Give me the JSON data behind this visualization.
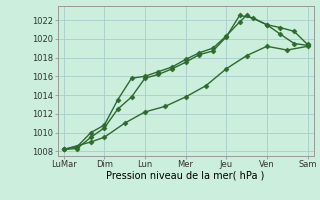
{
  "xlabel": "Pression niveau de la mer( hPa )",
  "ylim": [
    1007.5,
    1023.5
  ],
  "yticks": [
    1008,
    1010,
    1012,
    1014,
    1016,
    1018,
    1020,
    1022
  ],
  "x_labels": [
    "LuMar",
    "Dim",
    "Lun",
    "Mer",
    "Jeu",
    "Ven",
    "Sam"
  ],
  "background_color": "#cceedd",
  "grid_color": "#aacccc",
  "line_color": "#2d6a2d",
  "series": [
    {
      "x": [
        0,
        0.33,
        0.67,
        1.0,
        1.33,
        1.67,
        2.0,
        2.33,
        2.67,
        3.0,
        3.33,
        3.67,
        4.0,
        4.33,
        4.67,
        5.0,
        5.33,
        5.67,
        6.0
      ],
      "y": [
        1008.2,
        1008.3,
        1009.5,
        1010.5,
        1012.5,
        1013.8,
        1015.8,
        1016.2,
        1016.8,
        1017.5,
        1018.3,
        1018.7,
        1020.2,
        1022.5,
        1022.2,
        1021.5,
        1020.5,
        1019.5,
        1019.3
      ]
    },
    {
      "x": [
        0,
        0.33,
        0.67,
        1.0,
        1.33,
        1.67,
        2.0,
        2.33,
        2.67,
        3.0,
        3.33,
        3.67,
        4.0,
        4.33,
        4.5,
        5.0,
        5.33,
        5.67,
        6.0
      ],
      "y": [
        1008.2,
        1008.5,
        1010.0,
        1010.8,
        1013.5,
        1015.8,
        1016.0,
        1016.5,
        1017.0,
        1017.8,
        1018.5,
        1019.0,
        1020.3,
        1021.8,
        1022.5,
        1021.5,
        1021.2,
        1020.8,
        1019.4
      ]
    },
    {
      "x": [
        0,
        0.67,
        1.0,
        1.5,
        2.0,
        2.5,
        3.0,
        3.5,
        4.0,
        4.5,
        5.0,
        5.5,
        6.0
      ],
      "y": [
        1008.2,
        1009.0,
        1009.5,
        1011.0,
        1012.2,
        1012.8,
        1013.8,
        1015.0,
        1016.8,
        1018.2,
        1019.2,
        1018.8,
        1019.2
      ]
    }
  ],
  "xtick_positions": [
    0,
    1,
    2,
    3,
    4,
    5,
    6
  ],
  "label_fontsize": 7.0,
  "tick_fontsize": 6.0,
  "markersize": 2.5,
  "linewidth": 1.0
}
